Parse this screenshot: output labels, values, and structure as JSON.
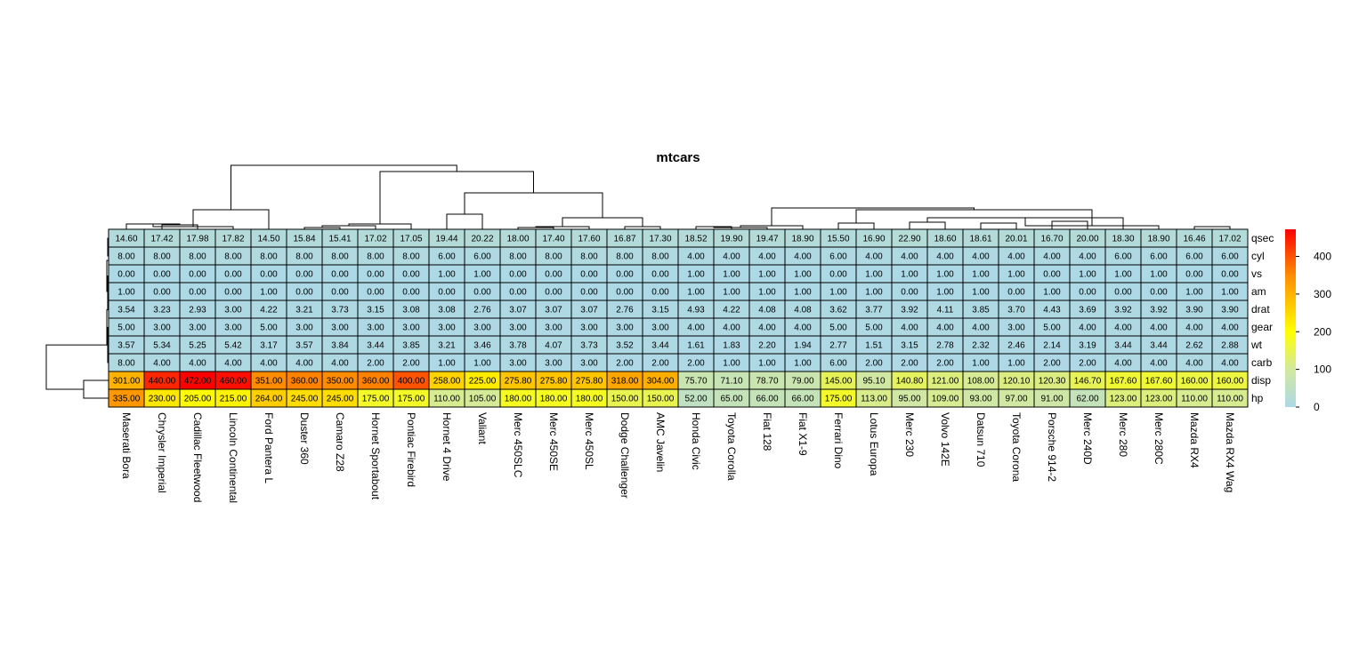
{
  "chart_data": {
    "type": "heatmap",
    "title": "mtcars",
    "rows": [
      "qsec",
      "cyl",
      "vs",
      "am",
      "drat",
      "gear",
      "wt",
      "carb",
      "disp",
      "hp"
    ],
    "columns": [
      "Maserati Bora",
      "Chrysler Imperial",
      "Cadillac Fleetwood",
      "Lincoln Continental",
      "Ford Pantera L",
      "Duster 360",
      "Camaro Z28",
      "Hornet Sportabout",
      "Pontiac Firebird",
      "Hornet 4 Drive",
      "Valiant",
      "Merc 450SLC",
      "Merc 450SE",
      "Merc 450SL",
      "Dodge Challenger",
      "AMC Javelin",
      "Honda Civic",
      "Toyota Corolla",
      "Fiat 128",
      "Fiat X1-9",
      "Ferrari Dino",
      "Lotus Europa",
      "Merc 230",
      "Volvo 142E",
      "Datsun 710",
      "Toyota Corona",
      "Porsche 914-2",
      "Merc 240D",
      "Merc 280",
      "Merc 280C",
      "Mazda RX4",
      "Mazda RX4 Wag"
    ],
    "values": [
      [
        14.6,
        17.42,
        17.98,
        17.82,
        14.5,
        15.84,
        15.41,
        17.02,
        17.05,
        19.44,
        20.22,
        18.0,
        17.4,
        17.6,
        16.87,
        17.3,
        18.52,
        19.9,
        19.47,
        18.9,
        15.5,
        16.9,
        22.9,
        18.6,
        18.61,
        20.01,
        16.7,
        20.0,
        18.3,
        18.9,
        16.46,
        17.02
      ],
      [
        8.0,
        8.0,
        8.0,
        8.0,
        8.0,
        8.0,
        8.0,
        8.0,
        8.0,
        6.0,
        6.0,
        8.0,
        8.0,
        8.0,
        8.0,
        8.0,
        4.0,
        4.0,
        4.0,
        4.0,
        6.0,
        4.0,
        4.0,
        4.0,
        4.0,
        4.0,
        4.0,
        4.0,
        6.0,
        6.0,
        6.0,
        6.0
      ],
      [
        0.0,
        0.0,
        0.0,
        0.0,
        0.0,
        0.0,
        0.0,
        0.0,
        0.0,
        1.0,
        1.0,
        0.0,
        0.0,
        0.0,
        0.0,
        0.0,
        1.0,
        1.0,
        1.0,
        1.0,
        0.0,
        1.0,
        1.0,
        1.0,
        1.0,
        1.0,
        0.0,
        1.0,
        1.0,
        1.0,
        0.0,
        0.0
      ],
      [
        1.0,
        0.0,
        0.0,
        0.0,
        1.0,
        0.0,
        0.0,
        0.0,
        0.0,
        0.0,
        0.0,
        0.0,
        0.0,
        0.0,
        0.0,
        0.0,
        1.0,
        1.0,
        1.0,
        1.0,
        1.0,
        1.0,
        0.0,
        1.0,
        1.0,
        0.0,
        1.0,
        0.0,
        0.0,
        0.0,
        1.0,
        1.0
      ],
      [
        3.54,
        3.23,
        2.93,
        3.0,
        4.22,
        3.21,
        3.73,
        3.15,
        3.08,
        3.08,
        2.76,
        3.07,
        3.07,
        3.07,
        2.76,
        3.15,
        4.93,
        4.22,
        4.08,
        4.08,
        3.62,
        3.77,
        3.92,
        4.11,
        3.85,
        3.7,
        4.43,
        3.69,
        3.92,
        3.92,
        3.9,
        3.9
      ],
      [
        5.0,
        3.0,
        3.0,
        3.0,
        5.0,
        3.0,
        3.0,
        3.0,
        3.0,
        3.0,
        3.0,
        3.0,
        3.0,
        3.0,
        3.0,
        3.0,
        4.0,
        4.0,
        4.0,
        4.0,
        5.0,
        5.0,
        4.0,
        4.0,
        4.0,
        3.0,
        5.0,
        4.0,
        4.0,
        4.0,
        4.0,
        4.0
      ],
      [
        3.57,
        5.34,
        5.25,
        5.42,
        3.17,
        3.57,
        3.84,
        3.44,
        3.85,
        3.21,
        3.46,
        3.78,
        4.07,
        3.73,
        3.52,
        3.44,
        1.61,
        1.83,
        2.2,
        1.94,
        2.77,
        1.51,
        3.15,
        2.78,
        2.32,
        2.46,
        2.14,
        3.19,
        3.44,
        3.44,
        2.62,
        2.88
      ],
      [
        8.0,
        4.0,
        4.0,
        4.0,
        4.0,
        4.0,
        4.0,
        2.0,
        2.0,
        1.0,
        1.0,
        3.0,
        3.0,
        3.0,
        2.0,
        2.0,
        2.0,
        1.0,
        1.0,
        1.0,
        6.0,
        2.0,
        2.0,
        2.0,
        1.0,
        1.0,
        2.0,
        2.0,
        4.0,
        4.0,
        4.0,
        4.0
      ],
      [
        301.0,
        440.0,
        472.0,
        460.0,
        351.0,
        360.0,
        350.0,
        360.0,
        400.0,
        258.0,
        225.0,
        275.8,
        275.8,
        275.8,
        318.0,
        304.0,
        75.7,
        71.1,
        78.7,
        79.0,
        145.0,
        95.1,
        140.8,
        121.0,
        108.0,
        120.1,
        120.3,
        146.7,
        167.6,
        167.6,
        160.0,
        160.0
      ],
      [
        335.0,
        230.0,
        205.0,
        215.0,
        264.0,
        245.0,
        245.0,
        175.0,
        175.0,
        110.0,
        105.0,
        180.0,
        180.0,
        180.0,
        150.0,
        150.0,
        52.0,
        65.0,
        66.0,
        66.0,
        175.0,
        113.0,
        95.0,
        109.0,
        93.0,
        97.0,
        91.0,
        62.0,
        123.0,
        123.0,
        110.0,
        110.0
      ]
    ],
    "color_scale": {
      "range": [
        0,
        472
      ],
      "stops": [
        {
          "value": 0,
          "color": "#add8e6"
        },
        {
          "value": 100,
          "color": "#d2e9a0"
        },
        {
          "value": 200,
          "color": "#ffff00"
        },
        {
          "value": 350,
          "color": "#ff8c00"
        },
        {
          "value": 472,
          "color": "#ff0000"
        }
      ]
    },
    "legend": {
      "position": "right",
      "ticks": [
        "0",
        "100",
        "200",
        "300",
        "400"
      ],
      "tick_values": [
        0,
        100,
        200,
        300,
        400
      ]
    },
    "value_format_decimals": 2
  }
}
